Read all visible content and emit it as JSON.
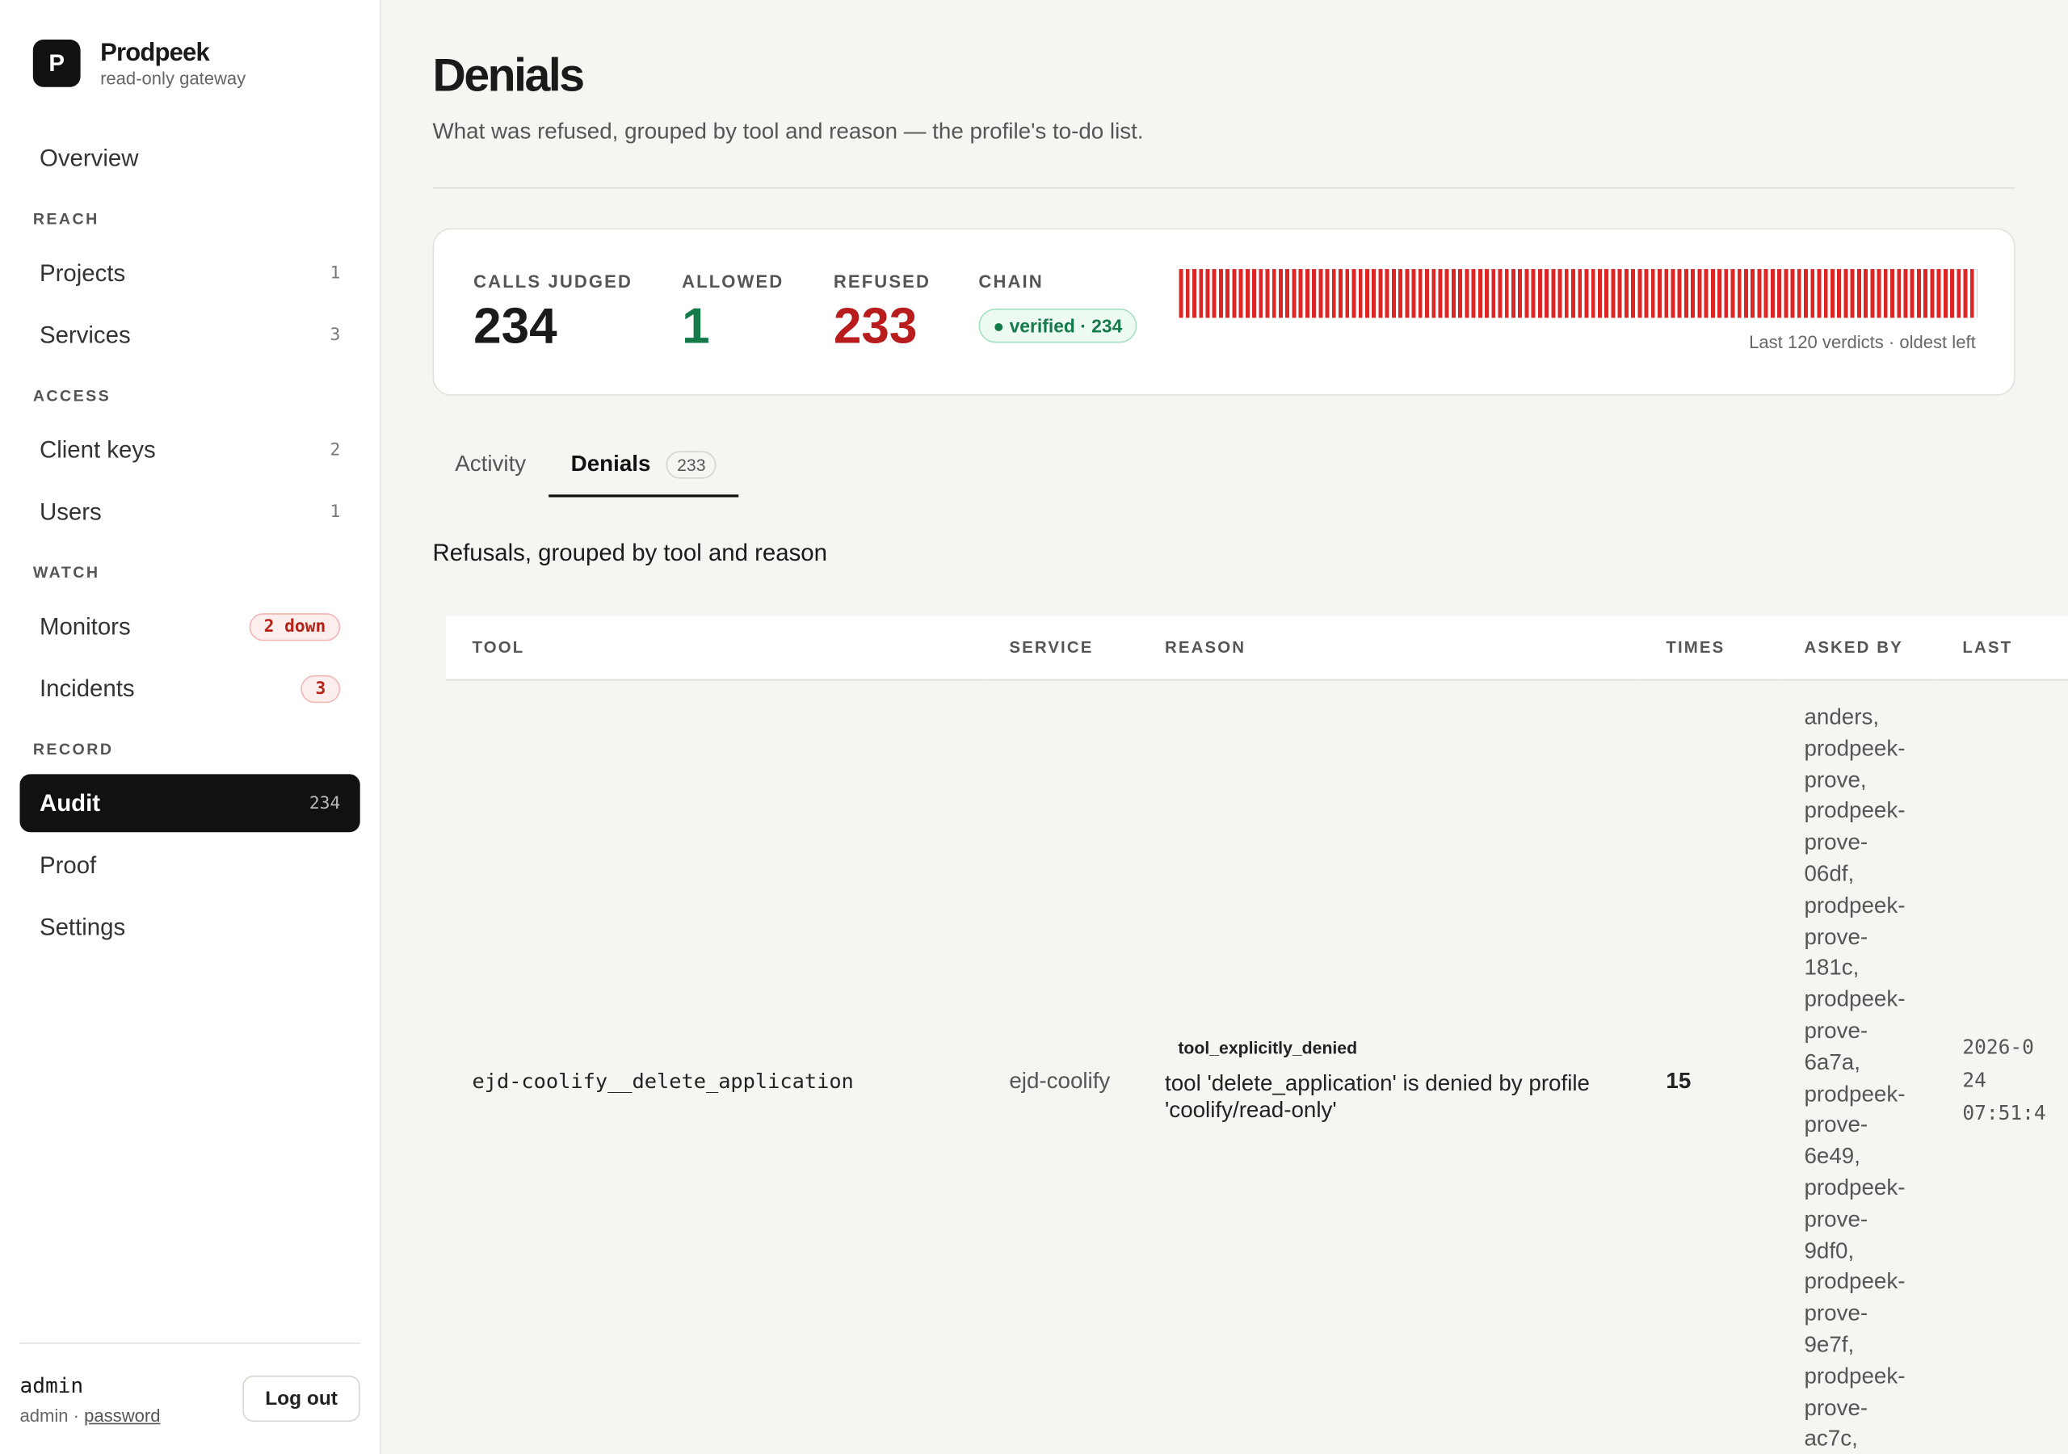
{
  "sidebar": {
    "brand": {
      "logo": "P",
      "name": "Prodpeek",
      "tagline": "read-only gateway"
    },
    "overview": "Overview",
    "sections": [
      {
        "label": "REACH",
        "items": [
          {
            "label": "Projects",
            "count": "1"
          },
          {
            "label": "Services",
            "count": "3"
          }
        ]
      },
      {
        "label": "ACCESS",
        "items": [
          {
            "label": "Client keys",
            "count": "2"
          },
          {
            "label": "Users",
            "count": "1"
          }
        ]
      },
      {
        "label": "WATCH",
        "items": [
          {
            "label": "Monitors",
            "count": "2 down"
          },
          {
            "label": "Incidents",
            "count": "3"
          }
        ]
      },
      {
        "label": "RECORD",
        "items": [
          {
            "label": "Audit",
            "count": "234"
          },
          {
            "label": "Proof"
          },
          {
            "label": "Settings"
          }
        ]
      }
    ],
    "user": {
      "name": "admin",
      "role": "admin",
      "link": "password",
      "logout": "Log out"
    }
  },
  "header": {
    "title": "Denials",
    "subtitle": "What was refused, grouped by tool and reason — the profile's to-do list."
  },
  "stats": {
    "calls_judged": {
      "label": "CALLS JUDGED",
      "value": "234"
    },
    "allowed": {
      "label": "ALLOWED",
      "value": "1"
    },
    "refused": {
      "label": "REFUSED",
      "value": "233"
    },
    "chain": {
      "label": "CHAIN",
      "value": "verified · 234"
    },
    "strip_caption": "Last 120 verdicts · oldest left"
  },
  "tabs": [
    {
      "label": "Activity"
    },
    {
      "label": "Denials",
      "count": "233"
    }
  ],
  "section_title": "Refusals, grouped by tool and reason",
  "table": {
    "columns": [
      "TOOL",
      "SERVICE",
      "REASON",
      "TIMES",
      "ASKED BY",
      "LAST"
    ],
    "rows": [
      {
        "tool": "ejd-coolify__delete_application",
        "service": "ejd-coolify",
        "reason_tag": "tool_explicitly_denied",
        "reason": "tool 'delete_application' is denied by profile 'coolify/read-only'",
        "times": "15",
        "asked_by": "anders, prodpeek-prove, prodpeek-prove-06df, prodpeek-prove-181c, prodpeek-prove-6a7a, prodpeek-prove-6e49, prodpeek-prove-9df0, prodpeek-prove-9e7f, prodpeek-prove-ac7c,",
        "last": "2026-0\n24\n07:51:4"
      }
    ]
  }
}
